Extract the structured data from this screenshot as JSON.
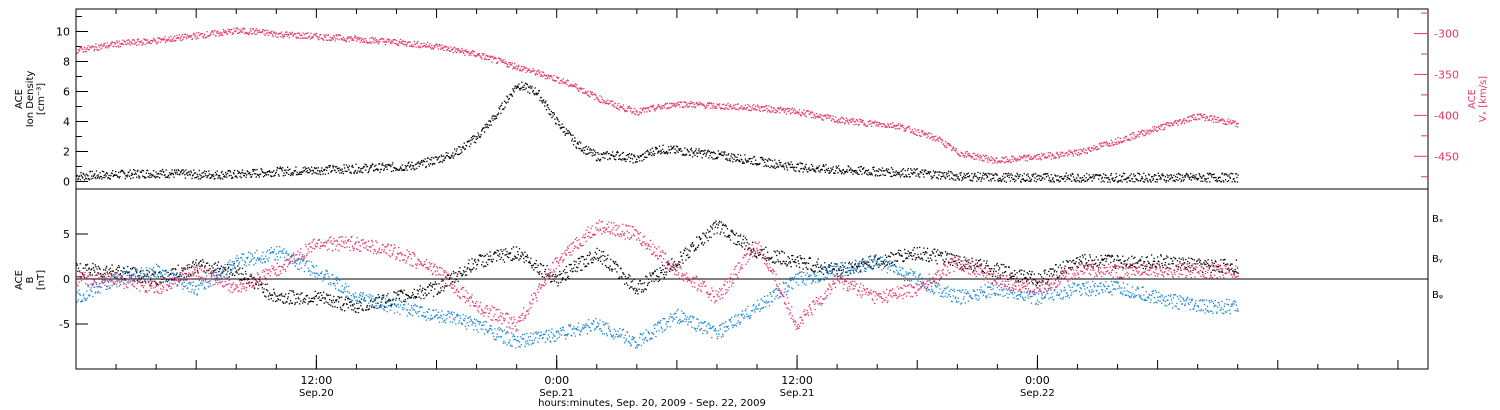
{
  "chart_data": [
    {
      "type": "scatter",
      "panel": "top",
      "ylabel_left": [
        "ACE",
        "Ion Density",
        "[cm⁻³]"
      ],
      "ylabel_right": [
        "ACE",
        "Vₓ [km/s]"
      ],
      "ylim_left": [
        -0.5,
        11.5
      ],
      "yticks_left": [
        "0",
        "2",
        "4",
        "6",
        "8",
        "10"
      ],
      "ylim_right": [
        -490,
        -270
      ],
      "yticks_right": [
        "-300",
        "-350",
        "-400",
        "-450"
      ],
      "series": [
        {
          "color": "#000000",
          "axis": "left",
          "x": [
            0,
            2,
            4,
            6,
            8,
            10,
            12,
            14,
            16,
            17,
            18,
            19,
            20,
            21,
            22,
            23,
            24,
            25,
            26,
            27,
            28,
            29,
            30,
            32,
            34,
            36,
            38,
            40,
            42,
            44,
            46,
            48,
            52,
            56,
            58
          ],
          "values": [
            0.4,
            0.5,
            0.6,
            0.5,
            0.5,
            0.7,
            0.8,
            0.9,
            1.0,
            1.1,
            1.5,
            2.0,
            3.0,
            4.5,
            6.5,
            6.0,
            4.0,
            2.5,
            1.7,
            1.8,
            1.5,
            2.2,
            2.1,
            1.8,
            1.4,
            1.0,
            0.8,
            0.7,
            0.6,
            0.4,
            0.3,
            0.3,
            0.3,
            0.3,
            0.3
          ]
        },
        {
          "color": "#e8366a",
          "axis": "right",
          "x": [
            0,
            2,
            4,
            6,
            8,
            9,
            10,
            12,
            14,
            16,
            18,
            20,
            22,
            24,
            25,
            26,
            27,
            28,
            30,
            32,
            34,
            36,
            38,
            40,
            41,
            42,
            43,
            44,
            46,
            48,
            50,
            52,
            54,
            56,
            58
          ],
          "values": [
            -320,
            -312,
            -308,
            -302,
            -296,
            -297,
            -300,
            -303,
            -306,
            -310,
            -315,
            -325,
            -340,
            -355,
            -365,
            -378,
            -388,
            -395,
            -385,
            -388,
            -390,
            -395,
            -405,
            -410,
            -412,
            -420,
            -428,
            -445,
            -455,
            -450,
            -445,
            -430,
            -415,
            -400,
            -410
          ]
        }
      ]
    },
    {
      "type": "scatter",
      "panel": "bottom",
      "ylabel": [
        "ACE",
        "B",
        "[nT]"
      ],
      "ylim": [
        -10,
        10
      ],
      "yticks": [
        "5",
        "0",
        "-5"
      ],
      "series": [
        {
          "name": "Bₓ",
          "color": "#000000",
          "x": [
            0,
            2,
            4,
            6,
            8,
            10,
            12,
            14,
            16,
            18,
            20,
            22,
            24,
            26,
            28,
            30,
            32,
            34,
            36,
            38,
            40,
            42,
            44,
            46,
            48,
            50,
            52,
            54,
            56,
            58
          ],
          "values": [
            1,
            1,
            0,
            1.5,
            1,
            -2,
            -2,
            -3,
            -2,
            -1,
            2,
            3,
            0,
            3,
            -1,
            2,
            6,
            3,
            2,
            1,
            2,
            3,
            2,
            1,
            0,
            2,
            2,
            2,
            1.5,
            1.5
          ]
        },
        {
          "name": "Bᵧ",
          "color": "#1a86d8",
          "x": [
            0,
            2,
            4,
            6,
            8,
            10,
            12,
            14,
            16,
            18,
            20,
            22,
            24,
            26,
            28,
            30,
            32,
            34,
            36,
            38,
            40,
            42,
            44,
            46,
            48,
            50,
            52,
            54,
            56,
            58
          ],
          "values": [
            -2,
            0,
            1,
            -1,
            2,
            3,
            1,
            -2,
            -3,
            -4,
            -5,
            -7,
            -6,
            -5,
            -7,
            -4,
            -6,
            -3,
            0,
            1,
            2,
            0,
            -2,
            -1,
            -2,
            -1,
            -1,
            -2,
            -3,
            -3
          ]
        },
        {
          "name": "Bᵩ",
          "color": "#e8366a",
          "x": [
            0,
            2,
            4,
            6,
            8,
            10,
            12,
            14,
            16,
            18,
            20,
            22,
            24,
            26,
            28,
            30,
            32,
            34,
            36,
            38,
            40,
            42,
            44,
            46,
            48,
            50,
            52,
            54,
            56,
            58
          ],
          "values": [
            0,
            0,
            -1,
            1,
            -1,
            1,
            4,
            4,
            3,
            1,
            -3,
            -5,
            2,
            6,
            5,
            1,
            -2,
            4,
            -5,
            0,
            -2,
            -1,
            2,
            0,
            -1,
            1,
            1,
            1,
            1,
            1
          ]
        }
      ]
    }
  ],
  "xaxis": {
    "xlim": [
      0,
      67.5
    ],
    "ticks": [
      {
        "x": 12,
        "time": "12:00",
        "date": "Sep.20"
      },
      {
        "x": 24,
        "time": "0:00",
        "date": "Sep.21"
      },
      {
        "x": 36,
        "time": "12:00",
        "date": "Sep.21"
      },
      {
        "x": 48,
        "time": "0:00",
        "date": "Sep.22"
      }
    ],
    "label": "hours:minutes, Sep. 20, 2009 - Sep. 22, 2009"
  }
}
